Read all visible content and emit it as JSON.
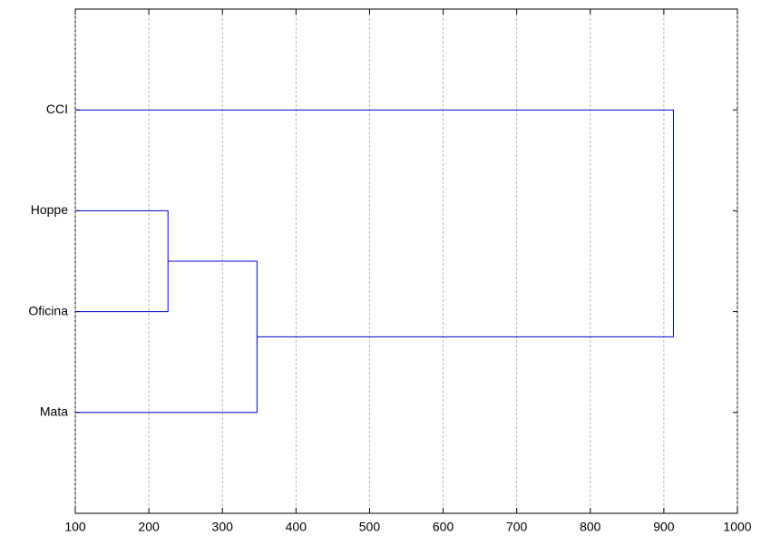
{
  "chart_data": {
    "type": "dendrogram",
    "categories": [
      "CCI",
      "Hoppe",
      "Oficina",
      "Mata"
    ],
    "merges": [
      {
        "children": [
          1,
          2
        ],
        "height": 226
      },
      {
        "children": [
          4,
          3
        ],
        "height": 347
      },
      {
        "children": [
          0,
          5
        ],
        "height": 913
      }
    ],
    "color": "#0000cc",
    "xlim": [
      100,
      1000
    ],
    "xticks": [
      100,
      200,
      300,
      400,
      500,
      600,
      700,
      800,
      900,
      1000
    ],
    "grid": true
  }
}
